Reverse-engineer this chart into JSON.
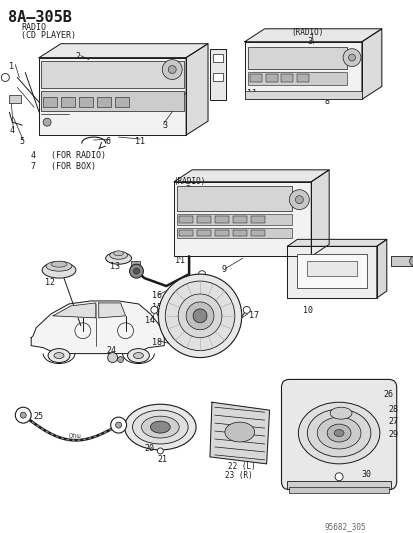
{
  "bg": "#ffffff",
  "lc": "#1a1a1a",
  "title": "8A–305B",
  "sub1": "RADIO",
  "sub2": "(CD PLAYER)",
  "watermark": "95682_305",
  "radio_lbl": "(RADIO)",
  "note1": "4   (FOR RADIO)",
  "note2": "7   (FOR BOX)",
  "lbl_22": "22 (L)",
  "lbl_23": "23 (R)"
}
